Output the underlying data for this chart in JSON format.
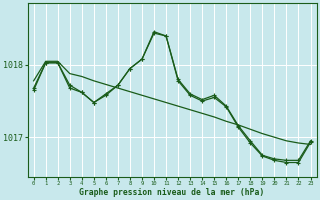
{
  "title": "Graphe pression niveau de la mer (hPa)",
  "background_color": "#c8e8ec",
  "grid_color": "#ffffff",
  "line_color": "#1a5c1a",
  "x_ticks": [
    0,
    1,
    2,
    3,
    4,
    5,
    6,
    7,
    8,
    9,
    10,
    11,
    12,
    13,
    14,
    15,
    16,
    17,
    18,
    19,
    20,
    21,
    22,
    23
  ],
  "ylim": [
    1016.45,
    1018.85
  ],
  "yticks": [
    1017.0,
    1018.0
  ],
  "series1": [
    1017.78,
    1018.05,
    1018.05,
    1017.88,
    1017.84,
    1017.78,
    1017.73,
    1017.68,
    1017.63,
    1017.58,
    1017.53,
    1017.48,
    1017.43,
    1017.38,
    1017.33,
    1017.28,
    1017.22,
    1017.17,
    1017.11,
    1017.05,
    1017.0,
    1016.95,
    1016.92,
    1016.9
  ],
  "series2": [
    1017.65,
    1018.03,
    1018.03,
    1017.72,
    1017.62,
    1017.48,
    1017.6,
    1017.72,
    1017.95,
    1018.08,
    1018.46,
    1018.4,
    1017.8,
    1017.6,
    1017.52,
    1017.58,
    1017.43,
    1017.16,
    1016.95,
    1016.75,
    1016.7,
    1016.68,
    1016.68,
    1016.95
  ],
  "series3": [
    1017.68,
    1018.03,
    1018.03,
    1017.68,
    1017.62,
    1017.48,
    1017.58,
    1017.72,
    1017.95,
    1018.08,
    1018.44,
    1018.4,
    1017.78,
    1017.58,
    1017.5,
    1017.55,
    1017.42,
    1017.14,
    1016.92,
    1016.74,
    1016.68,
    1016.65,
    1016.65,
    1016.93
  ]
}
